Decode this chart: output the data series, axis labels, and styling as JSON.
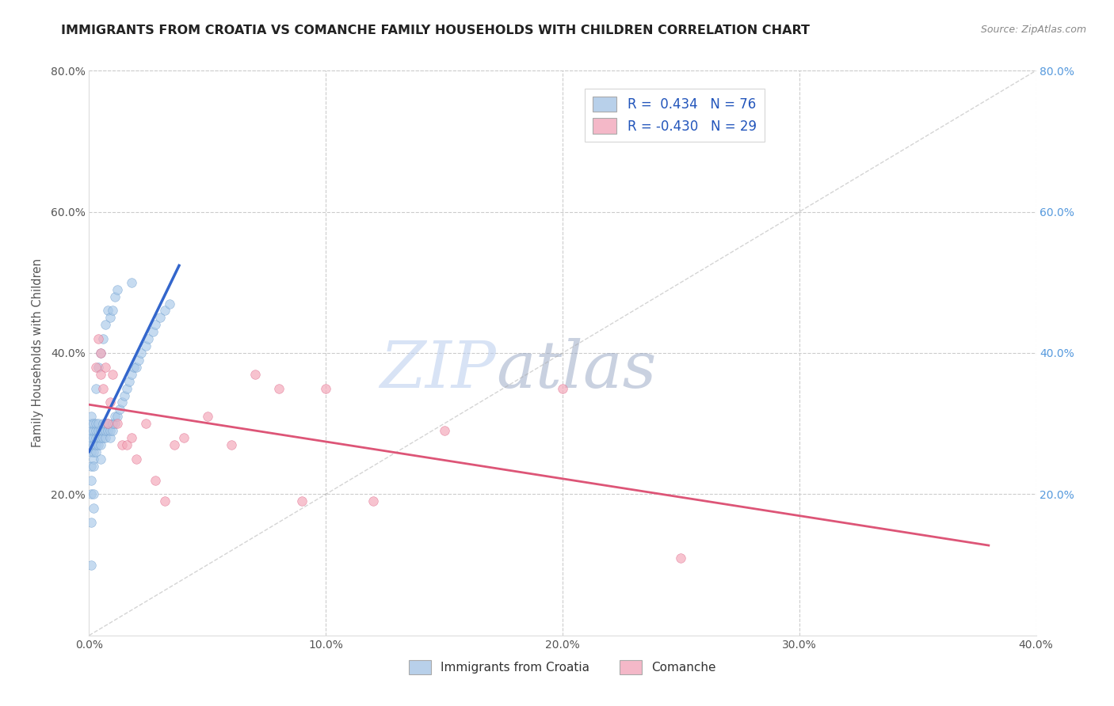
{
  "title": "IMMIGRANTS FROM CROATIA VS COMANCHE FAMILY HOUSEHOLDS WITH CHILDREN CORRELATION CHART",
  "source": "Source: ZipAtlas.com",
  "ylabel": "Family Households with Children",
  "legend_labels": [
    "Immigrants from Croatia",
    "Comanche"
  ],
  "xlim": [
    0.0,
    0.4
  ],
  "ylim": [
    0.0,
    0.8
  ],
  "blue_color": "#a8c8e8",
  "blue_edge_color": "#6699cc",
  "blue_line_color": "#3366cc",
  "pink_color": "#f4aabb",
  "pink_edge_color": "#dd6688",
  "pink_line_color": "#dd5577",
  "watermark_zip": "ZIP",
  "watermark_atlas": "atlas",
  "watermark_color_zip": "#c8d8ef",
  "watermark_color_atlas": "#8899bb",
  "background_color": "#ffffff",
  "grid_color": "#cccccc",
  "right_axis_color": "#5599dd",
  "blue_scatter_x": [
    0.001,
    0.001,
    0.001,
    0.001,
    0.001,
    0.001,
    0.001,
    0.001,
    0.001,
    0.002,
    0.002,
    0.002,
    0.002,
    0.002,
    0.002,
    0.002,
    0.003,
    0.003,
    0.003,
    0.003,
    0.003,
    0.004,
    0.004,
    0.004,
    0.004,
    0.005,
    0.005,
    0.005,
    0.005,
    0.006,
    0.006,
    0.006,
    0.007,
    0.007,
    0.007,
    0.008,
    0.008,
    0.009,
    0.009,
    0.01,
    0.01,
    0.011,
    0.011,
    0.012,
    0.013,
    0.014,
    0.015,
    0.016,
    0.017,
    0.018,
    0.019,
    0.02,
    0.021,
    0.022,
    0.024,
    0.025,
    0.027,
    0.028,
    0.03,
    0.032,
    0.034,
    0.001,
    0.001,
    0.002,
    0.002,
    0.003,
    0.004,
    0.005,
    0.006,
    0.007,
    0.008,
    0.009,
    0.01,
    0.011,
    0.012,
    0.018
  ],
  "blue_scatter_y": [
    0.24,
    0.26,
    0.27,
    0.28,
    0.29,
    0.3,
    0.31,
    0.22,
    0.2,
    0.25,
    0.26,
    0.27,
    0.28,
    0.29,
    0.3,
    0.24,
    0.26,
    0.27,
    0.28,
    0.29,
    0.3,
    0.27,
    0.28,
    0.29,
    0.3,
    0.27,
    0.28,
    0.29,
    0.25,
    0.28,
    0.29,
    0.3,
    0.28,
    0.29,
    0.3,
    0.29,
    0.3,
    0.28,
    0.29,
    0.29,
    0.3,
    0.3,
    0.31,
    0.31,
    0.32,
    0.33,
    0.34,
    0.35,
    0.36,
    0.37,
    0.38,
    0.38,
    0.39,
    0.4,
    0.41,
    0.42,
    0.43,
    0.44,
    0.45,
    0.46,
    0.47,
    0.16,
    0.1,
    0.2,
    0.18,
    0.35,
    0.38,
    0.4,
    0.42,
    0.44,
    0.46,
    0.45,
    0.46,
    0.48,
    0.49,
    0.5
  ],
  "pink_scatter_x": [
    0.003,
    0.004,
    0.005,
    0.005,
    0.006,
    0.007,
    0.008,
    0.009,
    0.01,
    0.012,
    0.014,
    0.016,
    0.018,
    0.02,
    0.024,
    0.028,
    0.032,
    0.036,
    0.04,
    0.05,
    0.06,
    0.07,
    0.08,
    0.09,
    0.1,
    0.12,
    0.15,
    0.2,
    0.25
  ],
  "pink_scatter_y": [
    0.38,
    0.42,
    0.37,
    0.4,
    0.35,
    0.38,
    0.3,
    0.33,
    0.37,
    0.3,
    0.27,
    0.27,
    0.28,
    0.25,
    0.3,
    0.22,
    0.19,
    0.27,
    0.28,
    0.31,
    0.27,
    0.37,
    0.35,
    0.19,
    0.35,
    0.19,
    0.29,
    0.35,
    0.11
  ],
  "ref_line_x": [
    0.0,
    0.4
  ],
  "ref_line_y": [
    0.0,
    0.8
  ]
}
